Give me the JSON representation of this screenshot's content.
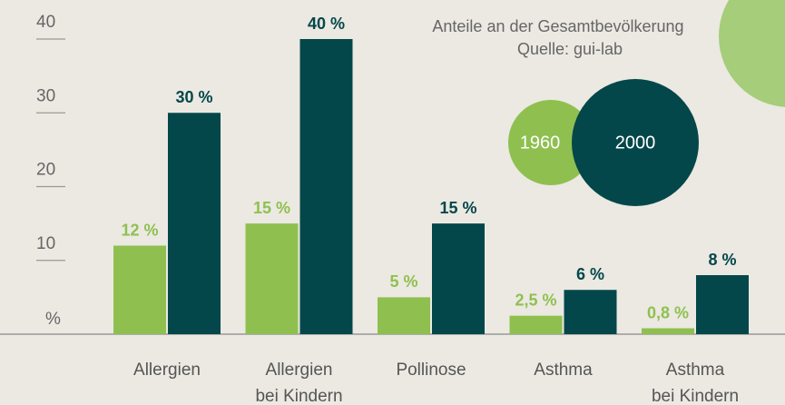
{
  "chart_data": {
    "type": "bar",
    "annotations": [
      "Anteile an der Gesamtbevölkerung",
      "Quelle: gui-lab"
    ],
    "ylabel": "%",
    "categories": [
      [
        "Allergien"
      ],
      [
        "Allergien",
        "bei Kindern"
      ],
      [
        "Pollinose"
      ],
      [
        "Asthma"
      ],
      [
        "Asthma",
        "bei Kindern"
      ]
    ],
    "series": [
      {
        "name": "1960",
        "color": "#8fc04f",
        "values": [
          12,
          15,
          5,
          2.5,
          0.8
        ],
        "value_labels": [
          "12 %",
          "15 %",
          "5 %",
          "2,5 %",
          "0,8 %"
        ]
      },
      {
        "name": "2000",
        "color": "#04474a",
        "values": [
          30,
          40,
          15,
          6,
          8
        ],
        "value_labels": [
          "30 %",
          "40 %",
          "15 %",
          "6 %",
          "8 %"
        ]
      }
    ],
    "ylim": [
      0,
      40
    ],
    "yticks": [
      10,
      20,
      30,
      40
    ]
  }
}
